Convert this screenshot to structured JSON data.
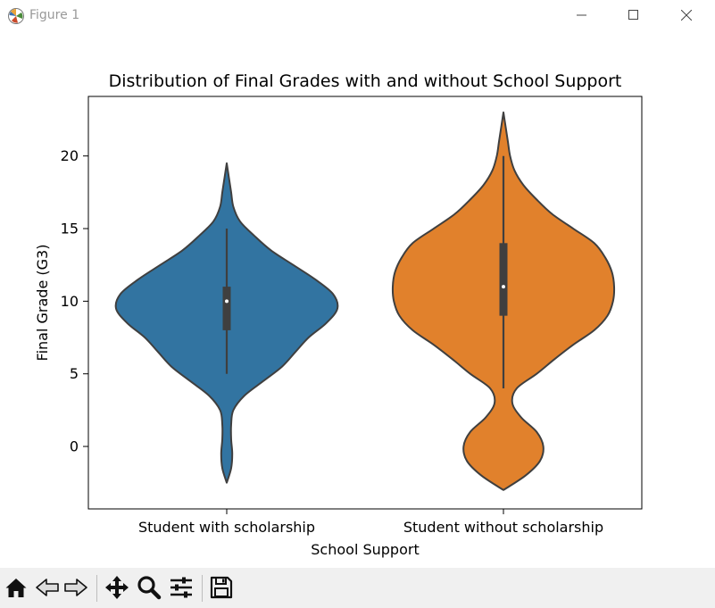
{
  "window": {
    "title": "Figure 1"
  },
  "toolbar": {
    "tools": [
      "home-icon",
      "back-icon",
      "forward-icon",
      "pan-icon",
      "zoom-icon",
      "configure-subplots-icon",
      "save-icon"
    ]
  },
  "colors": {
    "with": "#3274a1",
    "without": "#e1812c",
    "edge": "#3f3f3f"
  },
  "chart_data": {
    "type": "violin",
    "title": "Distribution of Final Grades with and without School Support",
    "xlabel": "School Support",
    "ylabel": "Final Grade (G3)",
    "categories": [
      "Student with scholarship",
      "Student without scholarship"
    ],
    "ylim": [
      -4.3,
      24.1
    ],
    "yticks": [
      0,
      5,
      10,
      15,
      20
    ],
    "violins": [
      {
        "category": "Student with scholarship",
        "color": "#3274a1",
        "whisker": [
          5,
          15
        ],
        "box": [
          8,
          11
        ],
        "median": 10,
        "extent": [
          -2.5,
          19.5
        ],
        "density": [
          [
            -2.5,
            0.0
          ],
          [
            -1.5,
            0.04
          ],
          [
            -0.5,
            0.05
          ],
          [
            0.5,
            0.04
          ],
          [
            1.5,
            0.04
          ],
          [
            2.5,
            0.06
          ],
          [
            3.5,
            0.16
          ],
          [
            4.5,
            0.33
          ],
          [
            5.5,
            0.5
          ],
          [
            6.5,
            0.62
          ],
          [
            7.5,
            0.74
          ],
          [
            8.5,
            0.9
          ],
          [
            9.5,
            1.0
          ],
          [
            10.5,
            0.96
          ],
          [
            11.5,
            0.8
          ],
          [
            12.5,
            0.6
          ],
          [
            13.5,
            0.4
          ],
          [
            14.5,
            0.25
          ],
          [
            15.5,
            0.12
          ],
          [
            16.5,
            0.06
          ],
          [
            17.5,
            0.04
          ],
          [
            18.5,
            0.02
          ],
          [
            19.5,
            0.0
          ]
        ]
      },
      {
        "category": "Student without scholarship",
        "color": "#e1812c",
        "whisker": [
          4,
          20
        ],
        "box": [
          9,
          14
        ],
        "median": 11,
        "extent": [
          -3,
          23
        ],
        "density": [
          [
            -3,
            0.0
          ],
          [
            -2,
            0.2
          ],
          [
            -1,
            0.33
          ],
          [
            0,
            0.36
          ],
          [
            1,
            0.3
          ],
          [
            2,
            0.16
          ],
          [
            3,
            0.08
          ],
          [
            4,
            0.12
          ],
          [
            5,
            0.3
          ],
          [
            6,
            0.46
          ],
          [
            7,
            0.63
          ],
          [
            8,
            0.82
          ],
          [
            9,
            0.94
          ],
          [
            10,
            0.99
          ],
          [
            11,
            1.0
          ],
          [
            12,
            0.98
          ],
          [
            13,
            0.92
          ],
          [
            14,
            0.82
          ],
          [
            15,
            0.63
          ],
          [
            16,
            0.44
          ],
          [
            17,
            0.3
          ],
          [
            18,
            0.18
          ],
          [
            19,
            0.1
          ],
          [
            20,
            0.06
          ],
          [
            21,
            0.04
          ],
          [
            22,
            0.02
          ],
          [
            23,
            0.0
          ]
        ]
      }
    ]
  }
}
